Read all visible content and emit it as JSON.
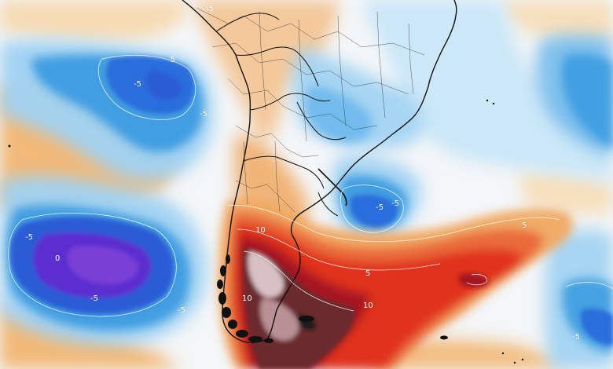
{
  "map": {
    "type": "temperature-anomaly",
    "region": "South America",
    "colors": {
      "background": "#f4f6f8",
      "cold_light": "#9fd2f2",
      "cold_mid": "#3c9be0",
      "cold_strong": "#2b5bd6",
      "cold_extreme": "#5b2fd0",
      "warm_light": "#f6d5a3",
      "warm_mid": "#f0a860",
      "warm_strong": "#e8452a",
      "warm_deep": "#b4141c",
      "warm_extreme": "#6b2b2e",
      "hot_core": "#d8c0c4",
      "land_fill": "#f1ecdf",
      "borders": "#111111",
      "contour": "#ffffff"
    },
    "contour_labels": [
      {
        "id": "l1",
        "text": "-5"
      },
      {
        "id": "l2",
        "text": "-5"
      },
      {
        "id": "l3",
        "text": "-5"
      },
      {
        "id": "l4",
        "text": "-5"
      },
      {
        "id": "l5",
        "text": "-5"
      },
      {
        "id": "l6",
        "text": "-5"
      },
      {
        "id": "l7",
        "text": "-5"
      },
      {
        "id": "l8",
        "text": "-5"
      },
      {
        "id": "l9",
        "text": "-5"
      },
      {
        "id": "l10",
        "text": "5"
      },
      {
        "id": "l11",
        "text": "5"
      },
      {
        "id": "l12",
        "text": "5"
      },
      {
        "id": "l13",
        "text": "10"
      },
      {
        "id": "l14",
        "text": "10"
      },
      {
        "id": "l15",
        "text": "10"
      },
      {
        "id": "l16",
        "text": "0"
      },
      {
        "id": "l17",
        "text": "-5"
      }
    ]
  }
}
